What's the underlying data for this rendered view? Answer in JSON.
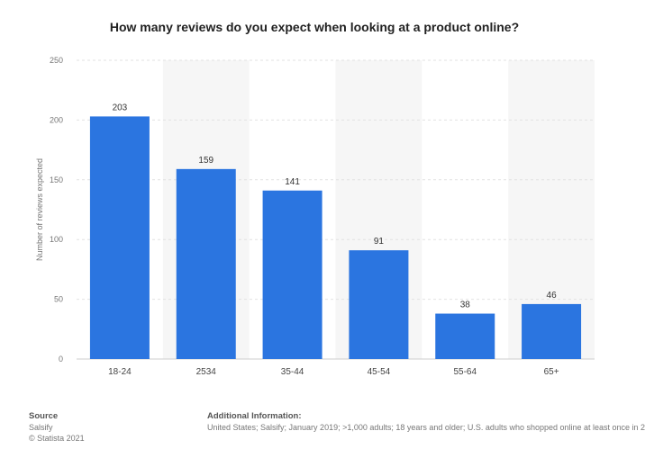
{
  "chart_data": {
    "type": "bar",
    "title": "How many reviews do you expect when looking at a product online?",
    "xlabel": "",
    "ylabel": "Number of reviews expected",
    "categories": [
      "18-24",
      "2534",
      "35-44",
      "45-54",
      "55-64",
      "65+"
    ],
    "values": [
      203,
      159,
      141,
      91,
      38,
      46
    ],
    "data_labels": [
      "203",
      "159",
      "141",
      "91",
      "38",
      "46"
    ],
    "ylim": [
      0,
      250
    ],
    "yticks": [
      0,
      50,
      100,
      150,
      200,
      250
    ],
    "grid": true,
    "bar_color": "#2b75e0"
  },
  "footer": {
    "source_heading": "Source",
    "source_name": "Salsify",
    "copyright": "© Statista 2021",
    "info_heading": "Additional Information:",
    "info_text": "United States; Salsify; January 2019; >1,000 adults; 18 years and older; U.S. adults who shopped online at least once in 2"
  }
}
